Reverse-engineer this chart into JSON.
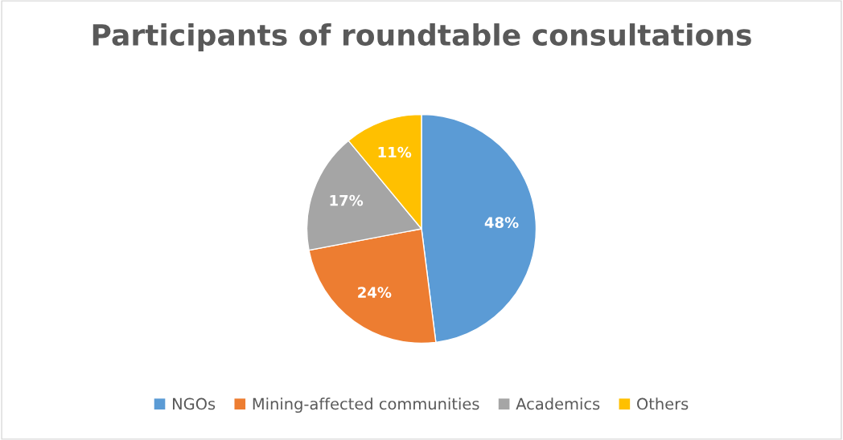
{
  "chart_data": {
    "type": "pie",
    "title": "Participants of roundtable consultations",
    "categories": [
      "NGOs",
      "Mining-affected communities",
      "Academics",
      "Others"
    ],
    "values": [
      48,
      24,
      17,
      11
    ],
    "colors": [
      "#5b9bd5",
      "#ed7d31",
      "#a5a5a5",
      "#ffc000"
    ],
    "value_labels": [
      "48%",
      "24%",
      "17%",
      "11%"
    ],
    "legend": "bottom"
  }
}
